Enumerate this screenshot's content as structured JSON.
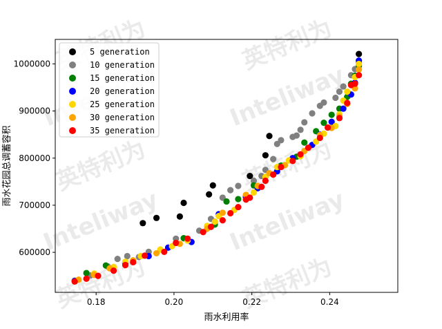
{
  "watermark": {
    "cn": "英特利为",
    "en": "Inteliway"
  },
  "chart_data": {
    "type": "scatter",
    "title": "",
    "xlabel": "雨水利用率",
    "ylabel": "雨水花园总调蓄容积",
    "xlim": [
      0.1695,
      0.2575
    ],
    "ylim": [
      515000,
      1052000
    ],
    "xticks": [
      0.18,
      0.2,
      0.22,
      0.24
    ],
    "xtick_labels": [
      "0.18",
      "0.20",
      "0.22",
      "0.24"
    ],
    "yticks": [
      600000,
      700000,
      800000,
      900000,
      1000000
    ],
    "ytick_labels": [
      "600000",
      "700000",
      "800000",
      "900000",
      "1000000"
    ],
    "grid": false,
    "legend_position": "top-left",
    "series": [
      {
        "name": "5 generation",
        "color": "#000000",
        "points": [
          [
            0.192,
            662000
          ],
          [
            0.1955,
            673000
          ],
          [
            0.2015,
            676000
          ],
          [
            0.2025,
            705000
          ],
          [
            0.209,
            723000
          ],
          [
            0.21,
            742000
          ],
          [
            0.2195,
            762000
          ],
          [
            0.2235,
            806000
          ],
          [
            0.2245,
            847000
          ],
          [
            0.2475,
            1021000
          ]
        ]
      },
      {
        "name": "10 generation",
        "color": "#808080",
        "points": [
          [
            0.1745,
            540000
          ],
          [
            0.1785,
            551000
          ],
          [
            0.183,
            570000
          ],
          [
            0.1855,
            586000
          ],
          [
            0.188,
            592000
          ],
          [
            0.191,
            590000
          ],
          [
            0.1935,
            601000
          ],
          [
            0.2005,
            629000
          ],
          [
            0.2065,
            646000
          ],
          [
            0.2095,
            671000
          ],
          [
            0.2125,
            716000
          ],
          [
            0.2145,
            732000
          ],
          [
            0.2165,
            741000
          ],
          [
            0.2185,
            721000
          ],
          [
            0.2205,
            752000
          ],
          [
            0.2225,
            762000
          ],
          [
            0.2235,
            775000
          ],
          [
            0.2255,
            798000
          ],
          [
            0.2265,
            830000
          ],
          [
            0.2275,
            838000
          ],
          [
            0.2305,
            845000
          ],
          [
            0.2315,
            848000
          ],
          [
            0.2325,
            860000
          ],
          [
            0.2335,
            876000
          ],
          [
            0.2355,
            895000
          ],
          [
            0.2375,
            911000
          ],
          [
            0.2385,
            918000
          ],
          [
            0.2415,
            928000
          ],
          [
            0.2425,
            941000
          ],
          [
            0.2435,
            952000
          ],
          [
            0.2455,
            976000
          ],
          [
            0.2465,
            989000
          ],
          [
            0.2475,
            1003000
          ]
        ]
      },
      {
        "name": "15 generation",
        "color": "#008000",
        "points": [
          [
            0.1775,
            556000
          ],
          [
            0.1825,
            572000
          ],
          [
            0.2025,
            630000
          ],
          [
            0.2105,
            659000
          ],
          [
            0.2135,
            708000
          ],
          [
            0.2165,
            713000
          ],
          [
            0.2185,
            717000
          ],
          [
            0.2205,
            742000
          ],
          [
            0.2235,
            760000
          ],
          [
            0.2275,
            784000
          ],
          [
            0.2315,
            803000
          ],
          [
            0.2335,
            833000
          ],
          [
            0.2365,
            857000
          ],
          [
            0.2385,
            875000
          ],
          [
            0.2405,
            892000
          ],
          [
            0.2425,
            905000
          ],
          [
            0.2445,
            930000
          ],
          [
            0.2455,
            958000
          ],
          [
            0.2465,
            975000
          ],
          [
            0.2475,
            996000
          ]
        ]
      },
      {
        "name": "20 generation",
        "color": "#0000ff",
        "points": [
          [
            0.1745,
            539000
          ],
          [
            0.1875,
            577000
          ],
          [
            0.1935,
            592000
          ],
          [
            0.1985,
            610000
          ],
          [
            0.2045,
            622000
          ],
          [
            0.2105,
            665000
          ],
          [
            0.2115,
            681000
          ],
          [
            0.2185,
            718000
          ],
          [
            0.2215,
            736000
          ],
          [
            0.2265,
            772000
          ],
          [
            0.2305,
            800000
          ],
          [
            0.2355,
            828000
          ],
          [
            0.2375,
            850000
          ],
          [
            0.2405,
            877000
          ],
          [
            0.2435,
            905000
          ],
          [
            0.2455,
            935000
          ],
          [
            0.2465,
            960000
          ],
          [
            0.2475,
            1007000
          ]
        ]
      },
      {
        "name": "25 generation",
        "color": "#ffd700",
        "points": [
          [
            0.1795,
            555000
          ],
          [
            0.1845,
            569000
          ],
          [
            0.1875,
            580000
          ],
          [
            0.1915,
            592000
          ],
          [
            0.1965,
            606000
          ],
          [
            0.1995,
            613000
          ],
          [
            0.2035,
            625000
          ],
          [
            0.2085,
            656000
          ],
          [
            0.2105,
            665000
          ],
          [
            0.2115,
            677000
          ],
          [
            0.2155,
            690000
          ],
          [
            0.2205,
            727000
          ],
          [
            0.2235,
            760000
          ],
          [
            0.2265,
            781000
          ],
          [
            0.2295,
            795000
          ],
          [
            0.2325,
            804000
          ],
          [
            0.2365,
            835000
          ],
          [
            0.2385,
            852000
          ],
          [
            0.2415,
            868000
          ],
          [
            0.2425,
            893000
          ],
          [
            0.2435,
            922000
          ],
          [
            0.2445,
            941000
          ],
          [
            0.2465,
            972000
          ],
          [
            0.2475,
            1000000
          ]
        ]
      },
      {
        "name": "30 generation",
        "color": "#ffa500",
        "points": [
          [
            0.1755,
            542000
          ],
          [
            0.1795,
            552000
          ],
          [
            0.1835,
            566000
          ],
          [
            0.1895,
            583000
          ],
          [
            0.1955,
            598000
          ],
          [
            0.2015,
            618000
          ],
          [
            0.2085,
            650000
          ],
          [
            0.2125,
            684000
          ],
          [
            0.2185,
            722000
          ],
          [
            0.2215,
            741000
          ],
          [
            0.2245,
            768000
          ],
          [
            0.2285,
            785000
          ],
          [
            0.2335,
            815000
          ],
          [
            0.2375,
            849000
          ],
          [
            0.2405,
            864000
          ],
          [
            0.2425,
            888000
          ],
          [
            0.2445,
            915000
          ],
          [
            0.2465,
            948000
          ],
          [
            0.2475,
            988000
          ]
        ]
      },
      {
        "name": "35 generation",
        "color": "#ff0000",
        "points": [
          [
            0.1745,
            538000
          ],
          [
            0.1775,
            544000
          ],
          [
            0.1805,
            550000
          ],
          [
            0.1845,
            561000
          ],
          [
            0.1875,
            573000
          ],
          [
            0.1895,
            579000
          ],
          [
            0.1925,
            593000
          ],
          [
            0.1975,
            601000
          ],
          [
            0.2005,
            620000
          ],
          [
            0.2035,
            629000
          ],
          [
            0.2075,
            643000
          ],
          [
            0.2095,
            654000
          ],
          [
            0.2125,
            668000
          ],
          [
            0.2145,
            683000
          ],
          [
            0.2165,
            696000
          ],
          [
            0.2185,
            712000
          ],
          [
            0.2195,
            716000
          ],
          [
            0.2225,
            739000
          ],
          [
            0.2235,
            752000
          ],
          [
            0.2255,
            765000
          ],
          [
            0.2275,
            781000
          ],
          [
            0.2305,
            794000
          ],
          [
            0.2325,
            808000
          ],
          [
            0.2345,
            822000
          ],
          [
            0.2375,
            843000
          ],
          [
            0.2395,
            865000
          ],
          [
            0.2425,
            885000
          ],
          [
            0.2445,
            917000
          ],
          [
            0.2455,
            955000
          ],
          [
            0.2465,
            958000
          ],
          [
            0.2475,
            976000
          ]
        ]
      }
    ]
  }
}
